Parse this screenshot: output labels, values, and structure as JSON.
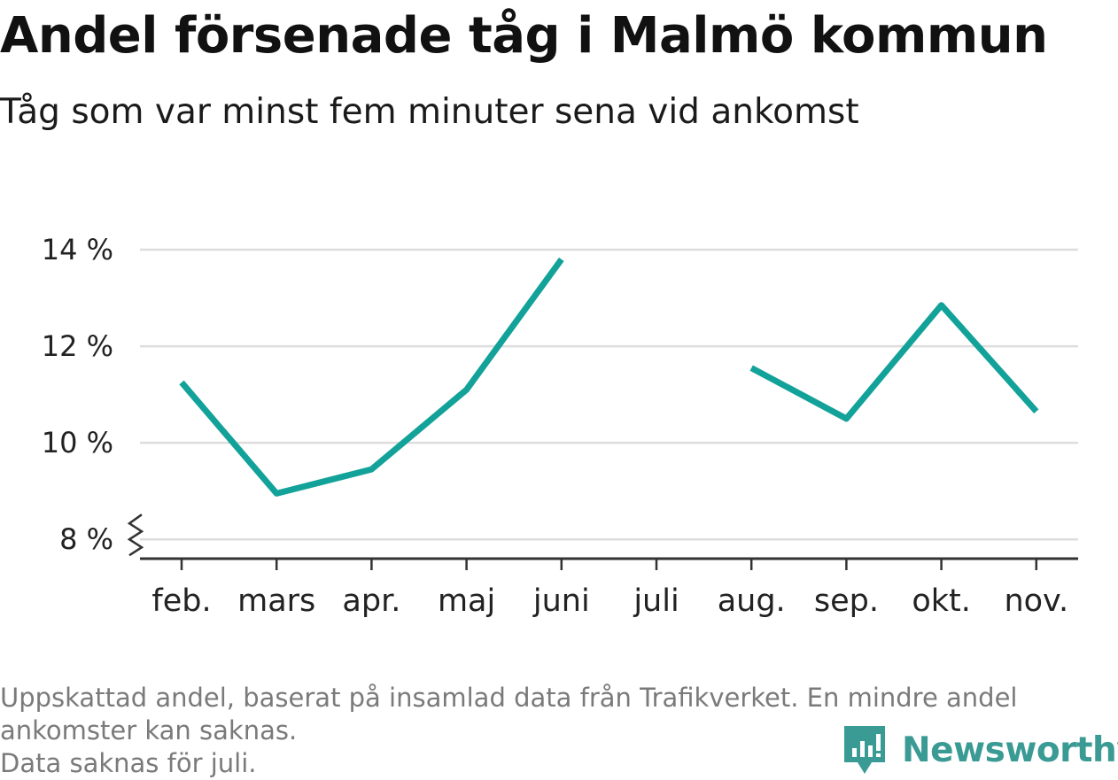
{
  "title": "Andel försenade tåg i Malmö kommun",
  "subtitle": "Tåg som var minst fem minuter sena vid ankomst",
  "footnote": {
    "line1": "Uppskattad andel, baserat på insamlad data från Trafikverket. En mindre andel",
    "line2": "ankomster kan saknas.",
    "line3": "Data saknas för juli."
  },
  "brand": {
    "name": "Newsworthy",
    "icon": "newsworthy-logo-icon",
    "color": "#3a9a94"
  },
  "colors": {
    "line": "#12a299",
    "grid": "#dddddd",
    "axis": "#333333"
  },
  "chart_data": {
    "type": "line",
    "categories": [
      "feb.",
      "mars",
      "apr.",
      "maj",
      "juni",
      "juli",
      "aug.",
      "sep.",
      "okt.",
      "nov."
    ],
    "series": [
      {
        "values": [
          11.25,
          8.95,
          9.45,
          11.1,
          13.8,
          null,
          11.55,
          10.5,
          12.85,
          10.65
        ]
      }
    ],
    "yticks": [
      8,
      10,
      12,
      14
    ],
    "ytick_labels": [
      "8 %",
      "10 %",
      "12 %",
      "14 %"
    ],
    "ylim": [
      7.6,
      14.0
    ],
    "y_axis_break": true,
    "grid": true,
    "xlabel": "",
    "ylabel": ""
  }
}
